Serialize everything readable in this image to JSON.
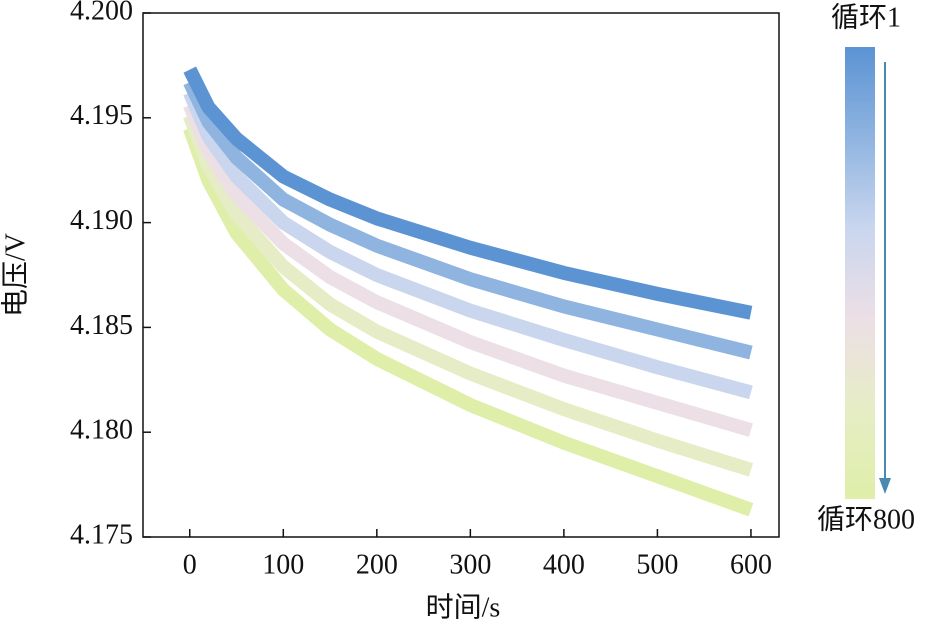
{
  "chart_data": {
    "type": "line",
    "x_label": "时间/s",
    "y_label": "电压/V",
    "x": [
      0,
      20,
      50,
      100,
      150,
      200,
      300,
      400,
      500,
      600
    ],
    "xlim": [
      -50,
      630
    ],
    "ylim": [
      4.175,
      4.2
    ],
    "xticks": [
      0,
      100,
      200,
      300,
      400,
      500,
      600
    ],
    "yticks": [
      {
        "value": 4.2,
        "label": "4.200"
      },
      4.195,
      {
        "value": 4.19,
        "label": "4.190"
      },
      4.185,
      {
        "value": 4.18,
        "label": "4.180"
      },
      4.175
    ],
    "series": [
      {
        "color": "#dfeea8",
        "values": [
          4.1945,
          4.192,
          4.1895,
          4.1868,
          4.1849,
          4.1835,
          4.1813,
          4.1795,
          4.1779,
          4.1763
        ]
      },
      {
        "color": "#e6edc6",
        "values": [
          4.1951,
          4.1927,
          4.1904,
          4.1879,
          4.1861,
          4.1848,
          4.1828,
          4.1811,
          4.1796,
          4.1782
        ]
      },
      {
        "color": "#ecdfe6",
        "values": [
          4.1956,
          4.1934,
          4.1913,
          4.189,
          4.1874,
          4.1862,
          4.1843,
          4.1827,
          4.1814,
          4.1801
        ]
      },
      {
        "color": "#c9d6ee",
        "values": [
          4.1962,
          4.1941,
          4.1922,
          4.19,
          4.1886,
          4.1875,
          4.1858,
          4.1844,
          4.1831,
          4.1819
        ]
      },
      {
        "color": "#8fb4e0",
        "values": [
          4.1967,
          4.1948,
          4.1931,
          4.1911,
          4.1899,
          4.1889,
          4.1873,
          4.186,
          4.1849,
          4.1838
        ]
      },
      {
        "color": "#5b93d3",
        "values": [
          4.1973,
          4.1955,
          4.194,
          4.1922,
          4.1911,
          4.1902,
          4.1888,
          4.1876,
          4.1866,
          4.1857
        ]
      }
    ],
    "colorbar": {
      "top_label": "循环1",
      "bottom_label": "循环800",
      "colors": [
        "#5b93d3",
        "#8fb4e0",
        "#c9d6ee",
        "#ecdfe6",
        "#e6edc6",
        "#dfeea8"
      ]
    }
  }
}
